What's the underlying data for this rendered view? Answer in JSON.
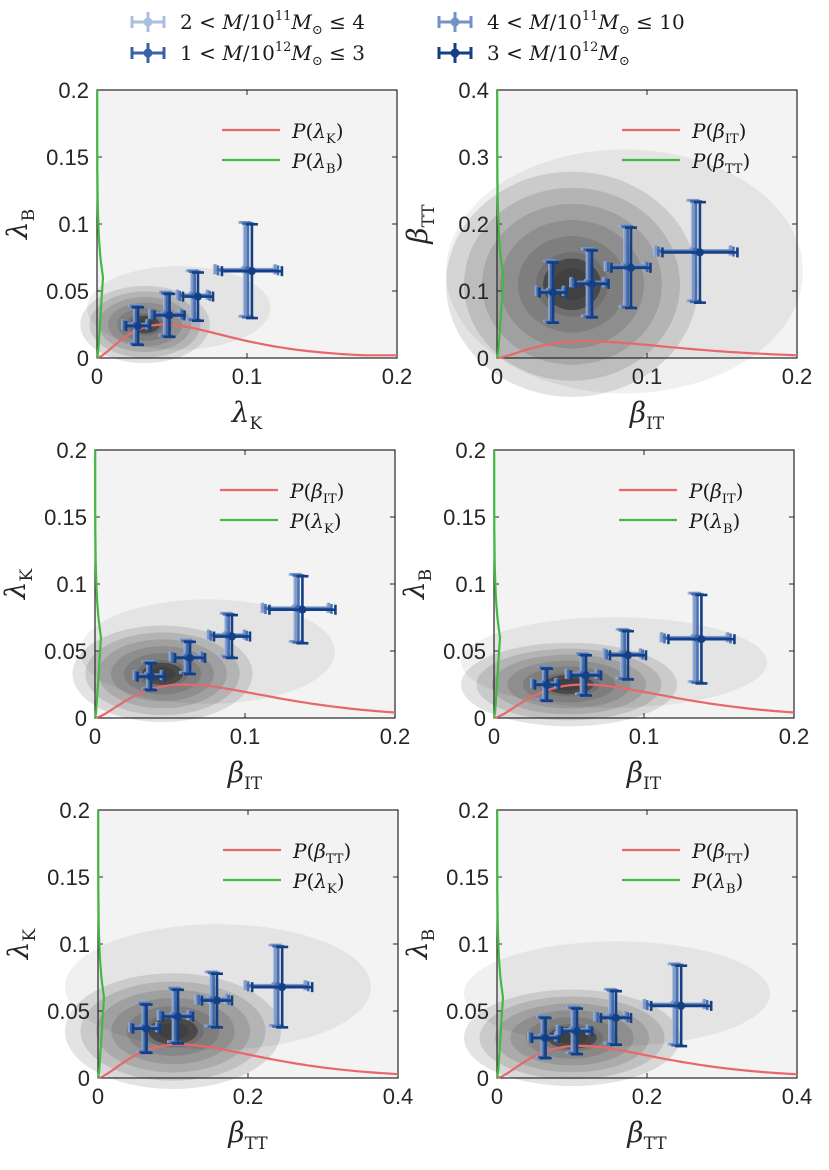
{
  "chart_data": {
    "type": "scatter",
    "legend": {
      "placement": "top",
      "entries": [
        {
          "id": "s1",
          "pre": "2 < ",
          "var": "M",
          "div": "/10",
          "exp": "11",
          "unit": "M",
          "sub": "⊙",
          "post": " ≤ 4",
          "color": "#a8bfe0"
        },
        {
          "id": "s2",
          "pre": "4 < ",
          "var": "M",
          "div": "/10",
          "exp": "11",
          "unit": "M",
          "sub": "⊙",
          "post": " ≤ 10",
          "color": "#7393c6"
        },
        {
          "id": "s3",
          "pre": "1 < ",
          "var": "M",
          "div": "/10",
          "exp": "12",
          "unit": "M",
          "sub": "⊙",
          "post": " ≤ 3",
          "color": "#3a62a8"
        },
        {
          "id": "s4",
          "pre": "3 < ",
          "var": "M",
          "div": "/10",
          "exp": "12",
          "unit": "M",
          "sub": "⊙",
          "post": "",
          "color": "#123f86"
        }
      ]
    },
    "curve_colors": {
      "red": "#e8676b",
      "green": "#44b840"
    },
    "panels": [
      {
        "id": "p1",
        "xlabel": {
          "main": "λ",
          "sub": "K"
        },
        "ylabel": {
          "main": "λ",
          "sub": "B"
        },
        "xlim": [
          0,
          0.2
        ],
        "ylim": [
          0,
          0.2
        ],
        "xticks": [
          "0",
          "0.1",
          "0.2"
        ],
        "yticks": [
          "0",
          "0.05",
          "0.1",
          "0.15",
          "0.2"
        ],
        "legend": [
          {
            "color": "red",
            "label": "P(λ",
            "sub": "K",
            "close": ")"
          },
          {
            "color": "green",
            "label": "P(λ",
            "sub": "B",
            "close": ")"
          }
        ],
        "blob": {
          "cx": 0.032,
          "cy": 0.025,
          "sx": 0.018,
          "sy": 0.012,
          "tail": 0.045
        },
        "red_curve": {
          "peak_x": 0.045,
          "peak_y": 0.025,
          "end_y": 0.002
        },
        "green_curve": {
          "top_y": 0.2,
          "knee_y": 0.06,
          "max_x": 0.02
        },
        "points": [
          {
            "x": 0.025,
            "y": 0.025,
            "xerr": 0.008,
            "yerr": 0.014
          },
          {
            "x": 0.045,
            "y": 0.033,
            "xerr": 0.01,
            "yerr": 0.016
          },
          {
            "x": 0.063,
            "y": 0.047,
            "xerr": 0.01,
            "yerr": 0.018
          },
          {
            "x": 0.098,
            "y": 0.066,
            "xerr": 0.02,
            "yerr": 0.035
          }
        ]
      },
      {
        "id": "p2",
        "xlabel": {
          "main": "β",
          "sub": "IT"
        },
        "ylabel": {
          "main": "β",
          "sub": "TT"
        },
        "xlim": [
          0,
          0.2
        ],
        "ylim": [
          0,
          0.4
        ],
        "xticks": [
          "0",
          "0.1",
          "0.2"
        ],
        "yticks": [
          "0",
          "0.1",
          "0.2",
          "0.3",
          "0.4"
        ],
        "legend": [
          {
            "color": "red",
            "label": "P(β",
            "sub": "IT",
            "close": ")"
          },
          {
            "color": "green",
            "label": "P(β",
            "sub": "TT",
            "close": ")"
          }
        ],
        "blob": {
          "cx": 0.05,
          "cy": 0.11,
          "sx": 0.035,
          "sy": 0.07,
          "tail": 0.07
        },
        "red_curve": {
          "peak_x": 0.06,
          "peak_y": 0.025,
          "end_y": 0.004
        },
        "green_curve": {
          "top_y": 0.4,
          "knee_y": 0.12,
          "max_x": 0.022
        },
        "points": [
          {
            "x": 0.035,
            "y": 0.1,
            "xerr": 0.009,
            "yerr": 0.045
          },
          {
            "x": 0.06,
            "y": 0.113,
            "xerr": 0.011,
            "yerr": 0.05
          },
          {
            "x": 0.085,
            "y": 0.137,
            "xerr": 0.013,
            "yerr": 0.06
          },
          {
            "x": 0.13,
            "y": 0.16,
            "xerr": 0.025,
            "yerr": 0.075
          }
        ]
      },
      {
        "id": "p3",
        "xlabel": {
          "main": "β",
          "sub": "IT"
        },
        "ylabel": {
          "main": "λ",
          "sub": "K"
        },
        "xlim": [
          0,
          0.2
        ],
        "ylim": [
          0,
          0.2
        ],
        "xticks": [
          "0",
          "0.1",
          "0.2"
        ],
        "yticks": [
          "0",
          "0.05",
          "0.1",
          "0.15",
          "0.2"
        ],
        "legend": [
          {
            "color": "red",
            "label": "P(β",
            "sub": "IT",
            "close": ")"
          },
          {
            "color": "green",
            "label": "P(λ",
            "sub": "K",
            "close": ")"
          }
        ],
        "blob": {
          "cx": 0.045,
          "cy": 0.033,
          "sx": 0.025,
          "sy": 0.015,
          "tail": 0.06
        },
        "red_curve": {
          "peak_x": 0.06,
          "peak_y": 0.025,
          "end_y": 0.003
        },
        "green_curve": {
          "top_y": 0.2,
          "knee_y": 0.06,
          "max_x": 0.02
        },
        "points": [
          {
            "x": 0.035,
            "y": 0.032,
            "xerr": 0.009,
            "yerr": 0.01
          },
          {
            "x": 0.06,
            "y": 0.046,
            "xerr": 0.01,
            "yerr": 0.012
          },
          {
            "x": 0.087,
            "y": 0.062,
            "xerr": 0.012,
            "yerr": 0.016
          },
          {
            "x": 0.133,
            "y": 0.082,
            "xerr": 0.022,
            "yerr": 0.025
          }
        ]
      },
      {
        "id": "p4",
        "xlabel": {
          "main": "β",
          "sub": "IT"
        },
        "ylabel": {
          "main": "λ",
          "sub": "B"
        },
        "xlim": [
          0,
          0.2
        ],
        "ylim": [
          0,
          0.2
        ],
        "xticks": [
          "0",
          "0.1",
          "0.2"
        ],
        "yticks": [
          "0",
          "0.05",
          "0.1",
          "0.15",
          "0.2"
        ],
        "legend": [
          {
            "color": "red",
            "label": "P(β",
            "sub": "IT",
            "close": ")"
          },
          {
            "color": "green",
            "label": "P(λ",
            "sub": "B",
            "close": ")"
          }
        ],
        "blob": {
          "cx": 0.05,
          "cy": 0.025,
          "sx": 0.03,
          "sy": 0.013,
          "tail": 0.06
        },
        "red_curve": {
          "peak_x": 0.06,
          "peak_y": 0.025,
          "end_y": 0.003
        },
        "green_curve": {
          "top_y": 0.2,
          "knee_y": 0.06,
          "max_x": 0.02
        },
        "points": [
          {
            "x": 0.033,
            "y": 0.026,
            "xerr": 0.008,
            "yerr": 0.012
          },
          {
            "x": 0.058,
            "y": 0.033,
            "xerr": 0.01,
            "yerr": 0.015
          },
          {
            "x": 0.085,
            "y": 0.048,
            "xerr": 0.012,
            "yerr": 0.018
          },
          {
            "x": 0.133,
            "y": 0.06,
            "xerr": 0.022,
            "yerr": 0.033
          }
        ]
      },
      {
        "id": "p5",
        "xlabel": {
          "main": "β",
          "sub": "TT"
        },
        "ylabel": {
          "main": "λ",
          "sub": "K"
        },
        "xlim": [
          0,
          0.4
        ],
        "ylim": [
          0,
          0.2
        ],
        "xticks": [
          "0",
          "0.2",
          "0.4"
        ],
        "yticks": [
          "0",
          "0.05",
          "0.1",
          "0.15",
          "0.2"
        ],
        "legend": [
          {
            "color": "red",
            "label": "P(β",
            "sub": "TT",
            "close": ")"
          },
          {
            "color": "green",
            "label": "P(λ",
            "sub": "K",
            "close": ")"
          }
        ],
        "blob": {
          "cx": 0.1,
          "cy": 0.035,
          "sx": 0.06,
          "sy": 0.018,
          "tail": 0.12
        },
        "red_curve": {
          "peak_x": 0.11,
          "peak_y": 0.025,
          "end_y": 0.001
        },
        "green_curve": {
          "top_y": 0.2,
          "knee_y": 0.06,
          "max_x": 0.02
        },
        "points": [
          {
            "x": 0.06,
            "y": 0.038,
            "xerr": 0.018,
            "yerr": 0.018
          },
          {
            "x": 0.1,
            "y": 0.047,
            "xerr": 0.02,
            "yerr": 0.02
          },
          {
            "x": 0.15,
            "y": 0.059,
            "xerr": 0.02,
            "yerr": 0.02
          },
          {
            "x": 0.235,
            "y": 0.069,
            "xerr": 0.04,
            "yerr": 0.03
          }
        ]
      },
      {
        "id": "p6",
        "xlabel": {
          "main": "β",
          "sub": "TT"
        },
        "ylabel": {
          "main": "λ",
          "sub": "B"
        },
        "xlim": [
          0,
          0.4
        ],
        "ylim": [
          0,
          0.2
        ],
        "xticks": [
          "0",
          "0.2",
          "0.4"
        ],
        "yticks": [
          "0",
          "0.05",
          "0.1",
          "0.15",
          "0.2"
        ],
        "legend": [
          {
            "color": "red",
            "label": "P(β",
            "sub": "TT",
            "close": ")"
          },
          {
            "color": "green",
            "label": "P(λ",
            "sub": "B",
            "close": ")"
          }
        ],
        "blob": {
          "cx": 0.1,
          "cy": 0.03,
          "sx": 0.06,
          "sy": 0.015,
          "tail": 0.12
        },
        "red_curve": {
          "peak_x": 0.11,
          "peak_y": 0.024,
          "end_y": 0.001
        },
        "green_curve": {
          "top_y": 0.2,
          "knee_y": 0.06,
          "max_x": 0.02
        },
        "points": [
          {
            "x": 0.06,
            "y": 0.031,
            "xerr": 0.018,
            "yerr": 0.015
          },
          {
            "x": 0.1,
            "y": 0.036,
            "xerr": 0.02,
            "yerr": 0.017
          },
          {
            "x": 0.15,
            "y": 0.046,
            "xerr": 0.02,
            "yerr": 0.02
          },
          {
            "x": 0.235,
            "y": 0.055,
            "xerr": 0.04,
            "yerr": 0.03
          }
        ]
      }
    ]
  }
}
